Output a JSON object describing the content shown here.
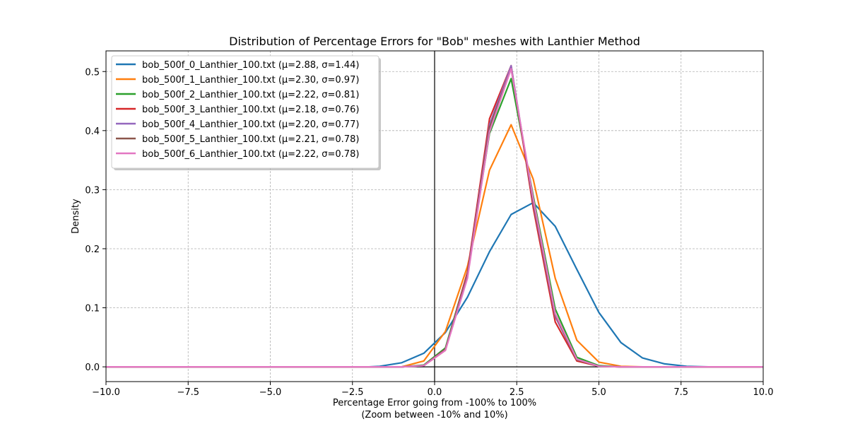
{
  "chart_data": {
    "type": "line",
    "title": "Distribution of Percentage Errors for \"Bob\" meshes with Lanthier Method",
    "xlabel": "Percentage Error going from -100% to 100%",
    "xlabel2": "(Zoom between -10% and 10%)",
    "ylabel": "Density",
    "xlim": [
      -10,
      10
    ],
    "ylim": [
      -0.025,
      0.535
    ],
    "xticks": [
      -10,
      -7.5,
      -5,
      -2.5,
      0,
      2.5,
      5,
      7.5,
      10
    ],
    "xtick_labels": [
      "−10.0",
      "−7.5",
      "−5.0",
      "−2.5",
      "0.0",
      "2.5",
      "5.0",
      "7.5",
      "10.0"
    ],
    "yticks": [
      0,
      0.1,
      0.2,
      0.3,
      0.4,
      0.5
    ],
    "ytick_labels": [
      "0.0",
      "0.1",
      "0.2",
      "0.3",
      "0.4",
      "0.5"
    ],
    "grid": true,
    "legend_position": "top-left",
    "reference_lines": {
      "x": 0,
      "y": 0
    },
    "x": [
      -10,
      -9.33,
      -8.67,
      -8,
      -7.33,
      -6.67,
      -6,
      -5.33,
      -4.67,
      -4,
      -3.33,
      -2.67,
      -2,
      -1.67,
      -1,
      -0.33,
      0.33,
      1,
      1.67,
      2.33,
      3,
      3.67,
      4.33,
      5,
      5.67,
      6.33,
      7,
      7.67,
      8.33,
      9,
      9.67,
      10
    ],
    "series": [
      {
        "name": "bob_500f_0_Lanthier_100.txt (μ=2.88, σ=1.44)",
        "color": "#1f77b4",
        "values": [
          0,
          0,
          0,
          0,
          0,
          0,
          0,
          0,
          0,
          0,
          0,
          0,
          0,
          0.001,
          0.007,
          0.023,
          0.058,
          0.118,
          0.195,
          0.258,
          0.278,
          0.238,
          0.165,
          0.092,
          0.041,
          0.015,
          0.005,
          0.001,
          0,
          0,
          0,
          0
        ]
      },
      {
        "name": "bob_500f_1_Lanthier_100.txt (μ=2.30, σ=0.97)",
        "color": "#ff7f0e",
        "values": [
          0,
          0,
          0,
          0,
          0,
          0,
          0,
          0,
          0,
          0,
          0,
          0,
          0,
          0,
          0,
          0.01,
          0.06,
          0.17,
          0.333,
          0.41,
          0.318,
          0.15,
          0.045,
          0.008,
          0.001,
          0,
          0,
          0,
          0,
          0,
          0,
          0
        ]
      },
      {
        "name": "bob_500f_2_Lanthier_100.txt (μ=2.22, σ=0.81)",
        "color": "#2ca02c",
        "values": [
          0,
          0,
          0,
          0,
          0,
          0,
          0,
          0,
          0,
          0,
          0,
          0,
          0,
          0,
          0,
          0.003,
          0.032,
          0.16,
          0.395,
          0.488,
          0.29,
          0.098,
          0.016,
          0.002,
          0,
          0,
          0,
          0,
          0,
          0,
          0,
          0
        ]
      },
      {
        "name": "bob_500f_3_Lanthier_100.txt (μ=2.18, σ=0.76)",
        "color": "#d62728",
        "values": [
          0,
          0,
          0,
          0,
          0,
          0,
          0,
          0,
          0,
          0,
          0,
          0,
          0,
          0,
          0,
          0.002,
          0.028,
          0.16,
          0.42,
          0.51,
          0.27,
          0.076,
          0.01,
          0.001,
          0,
          0,
          0,
          0,
          0,
          0,
          0,
          0
        ]
      },
      {
        "name": "bob_500f_4_Lanthier_100.txt (μ=2.20, σ=0.77)",
        "color": "#9467bd",
        "values": [
          0,
          0,
          0,
          0,
          0,
          0,
          0,
          0,
          0,
          0,
          0,
          0,
          0,
          0,
          0,
          0.002,
          0.03,
          0.155,
          0.41,
          0.51,
          0.278,
          0.085,
          0.012,
          0.001,
          0,
          0,
          0,
          0,
          0,
          0,
          0,
          0
        ]
      },
      {
        "name": "bob_500f_5_Lanthier_100.txt (μ=2.21, σ=0.78)",
        "color": "#8c564b",
        "values": [
          0,
          0,
          0,
          0,
          0,
          0,
          0,
          0,
          0,
          0,
          0,
          0,
          0,
          0,
          0,
          0.002,
          0.03,
          0.152,
          0.405,
          0.505,
          0.282,
          0.088,
          0.012,
          0.001,
          0,
          0,
          0,
          0,
          0,
          0,
          0,
          0
        ]
      },
      {
        "name": "bob_500f_6_Lanthier_100.txt (μ=2.22, σ=0.78)",
        "color": "#e377c2",
        "values": [
          0,
          0,
          0,
          0,
          0,
          0,
          0,
          0,
          0,
          0,
          0,
          0,
          0,
          0,
          0,
          0.002,
          0.028,
          0.15,
          0.398,
          0.505,
          0.285,
          0.09,
          0.013,
          0.001,
          0,
          0,
          0,
          0,
          0,
          0,
          0,
          0
        ]
      }
    ]
  }
}
